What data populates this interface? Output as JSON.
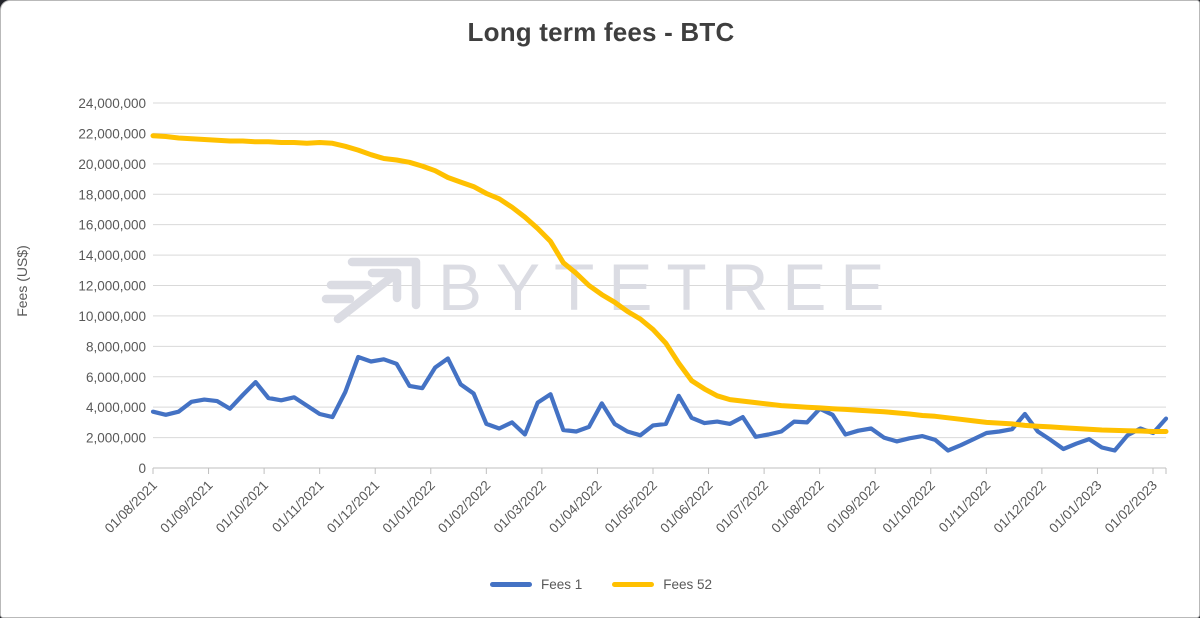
{
  "title": "Long term fees - BTC",
  "y_axis_label": "Fees (US$)",
  "watermark": "BYTETREE",
  "colors": {
    "fees1": "#4472C4",
    "fees52": "#FFC000",
    "grid": "#D9D9D9",
    "axis": "#BFBFBF",
    "tick_text": "#595959",
    "title_text": "#3F3F3F",
    "watermark": "#DBDCE3"
  },
  "legend": [
    {
      "label": "Fees 1",
      "color": "#4472C4"
    },
    {
      "label": "Fees 52",
      "color": "#FFC000"
    }
  ],
  "chart_data": {
    "type": "line",
    "title": "Long term fees - BTC",
    "xlabel": "",
    "ylabel": "Fees (US$)",
    "ylim": [
      0,
      24000000
    ],
    "y_tick_step": 2000000,
    "grid": "horizontal",
    "legend_position": "bottom-center",
    "x_tick_labels": [
      "01/08/2021",
      "01/09/2021",
      "01/10/2021",
      "01/11/2021",
      "01/12/2021",
      "01/01/2022",
      "01/02/2022",
      "01/03/2022",
      "01/04/2022",
      "01/05/2022",
      "01/06/2022",
      "01/07/2022",
      "01/08/2022",
      "01/09/2022",
      "01/10/2022",
      "01/11/2022",
      "01/12/2022",
      "01/01/2023",
      "01/02/2023"
    ],
    "x_sampling": "weekly, 80 points from 01/08/2021 to ~08/02/2023",
    "series": [
      {
        "name": "Fees 1",
        "color": "#4472C4",
        "values": [
          3700000,
          3500000,
          3700000,
          4350000,
          4500000,
          4400000,
          3900000,
          4800000,
          5650000,
          4600000,
          4450000,
          4650000,
          4100000,
          3550000,
          3350000,
          5000000,
          7300000,
          7000000,
          7150000,
          6850000,
          5400000,
          5250000,
          6600000,
          7200000,
          5500000,
          4900000,
          2900000,
          2600000,
          3000000,
          2200000,
          4300000,
          4850000,
          2500000,
          2400000,
          2700000,
          4250000,
          2900000,
          2400000,
          2150000,
          2800000,
          2900000,
          4750000,
          3300000,
          2950000,
          3050000,
          2900000,
          3350000,
          2050000,
          2200000,
          2400000,
          3050000,
          3000000,
          3900000,
          3500000,
          2200000,
          2450000,
          2600000,
          2000000,
          1750000,
          1950000,
          2100000,
          1850000,
          1150000,
          1500000,
          1900000,
          2300000,
          2400000,
          2550000,
          3550000,
          2400000,
          1850000,
          1250000,
          1600000,
          1900000,
          1350000,
          1150000,
          2150000,
          2600000,
          2300000,
          3250000
        ]
      },
      {
        "name": "Fees 52",
        "color": "#FFC000",
        "values": [
          21850000,
          21800000,
          21700000,
          21650000,
          21600000,
          21550000,
          21500000,
          21500000,
          21450000,
          21450000,
          21400000,
          21400000,
          21350000,
          21400000,
          21350000,
          21150000,
          20900000,
          20600000,
          20350000,
          20250000,
          20100000,
          19850000,
          19550000,
          19100000,
          18800000,
          18500000,
          18050000,
          17700000,
          17150000,
          16500000,
          15750000,
          14900000,
          13500000,
          12800000,
          12000000,
          11400000,
          10900000,
          10300000,
          9800000,
          9100000,
          8200000,
          6900000,
          5750000,
          5200000,
          4750000,
          4500000,
          4400000,
          4300000,
          4200000,
          4100000,
          4050000,
          4000000,
          3950000,
          3900000,
          3850000,
          3800000,
          3750000,
          3700000,
          3620000,
          3550000,
          3450000,
          3400000,
          3300000,
          3200000,
          3100000,
          3000000,
          2950000,
          2900000,
          2800000,
          2750000,
          2700000,
          2650000,
          2600000,
          2550000,
          2500000,
          2470000,
          2450000,
          2430000,
          2400000,
          2400000
        ]
      }
    ]
  }
}
